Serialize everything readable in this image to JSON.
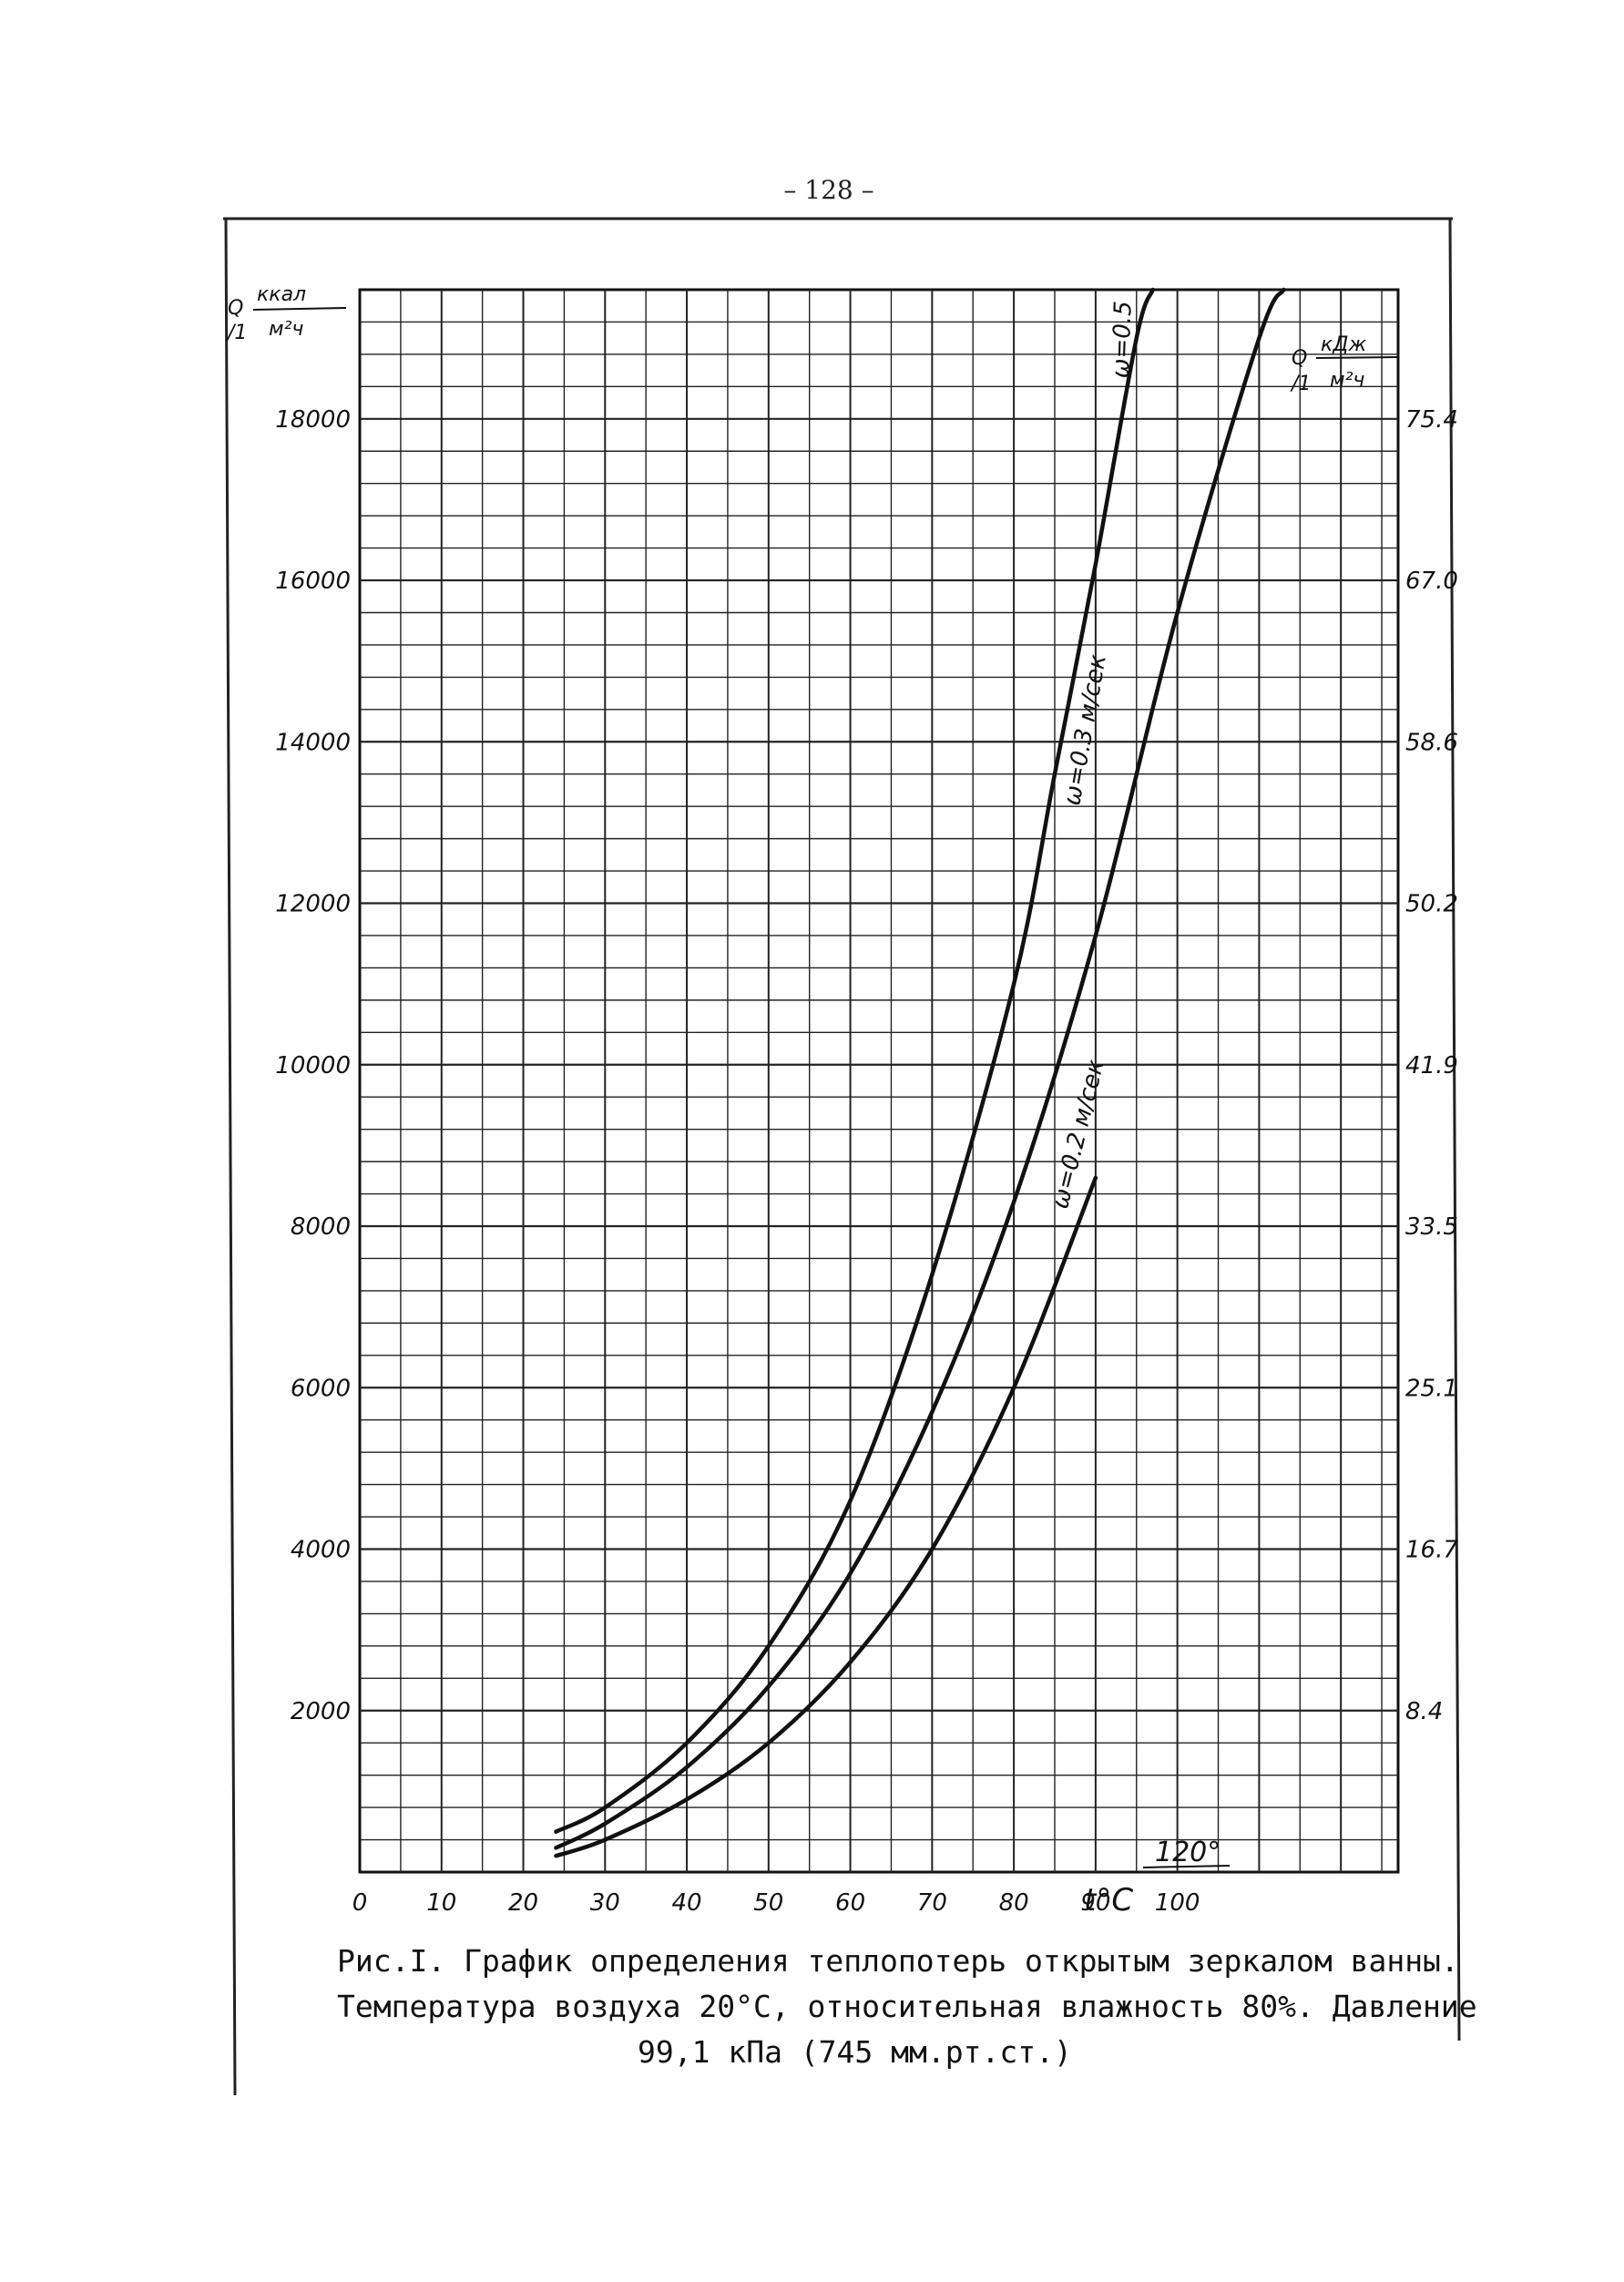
{
  "page_number": "– 128 –",
  "chart_data": {
    "type": "line",
    "title": "",
    "xlabel": "t°C",
    "ylabel_left": {
      "q": "Q",
      "unit_top": "ккал",
      "unit_sub": "/1",
      "unit_bottom": "м²ч"
    },
    "ylabel_right": {
      "q": "Q",
      "unit_top": "кДж",
      "unit_sub": "/1",
      "unit_bottom": "м²ч"
    },
    "xlim": [
      0,
      127
    ],
    "ylim": [
      0,
      19600
    ],
    "x_ticks": [
      "0",
      "10",
      "20",
      "30",
      "40",
      "50",
      "60",
      "70",
      "80",
      "90",
      "100"
    ],
    "y_ticks_left": [
      "2000",
      "4000",
      "6000",
      "8000",
      "10000",
      "12000",
      "14000",
      "16000",
      "18000"
    ],
    "y_ticks_right": [
      "8.4",
      "16.7",
      "25.1",
      "33.5",
      "41.9",
      "50.2",
      "58.6",
      "67.0",
      "75.4"
    ],
    "extra_label": "120°",
    "grid": true,
    "series": [
      {
        "name": "ω=0.5",
        "x": [
          24,
          30,
          40,
          50,
          60,
          70,
          80,
          85,
          90,
          95,
          97
        ],
        "y": [
          500,
          800,
          1600,
          2800,
          4600,
          7400,
          11000,
          13600,
          16200,
          19000,
          19600
        ]
      },
      {
        "name": "ω=0.3 м/сек",
        "x": [
          24,
          30,
          40,
          50,
          60,
          70,
          80,
          90,
          100,
          110,
          113
        ],
        "y": [
          300,
          600,
          1300,
          2300,
          3700,
          5700,
          8300,
          11600,
          15600,
          19000,
          19600
        ]
      },
      {
        "name": "ω=0.2 м/сек",
        "x": [
          24,
          30,
          40,
          50,
          60,
          70,
          80,
          90
        ],
        "y": [
          200,
          400,
          900,
          1600,
          2600,
          4000,
          6000,
          8600
        ]
      }
    ]
  },
  "caption": {
    "line1": "Рис.I. График определения теплопотерь открытым зеркалом ванны.",
    "line2": "Температура воздуха 20°С, относительная влажность 80%. Давление",
    "line3": "99,1 кПа (745 мм.рт.ст.)"
  }
}
